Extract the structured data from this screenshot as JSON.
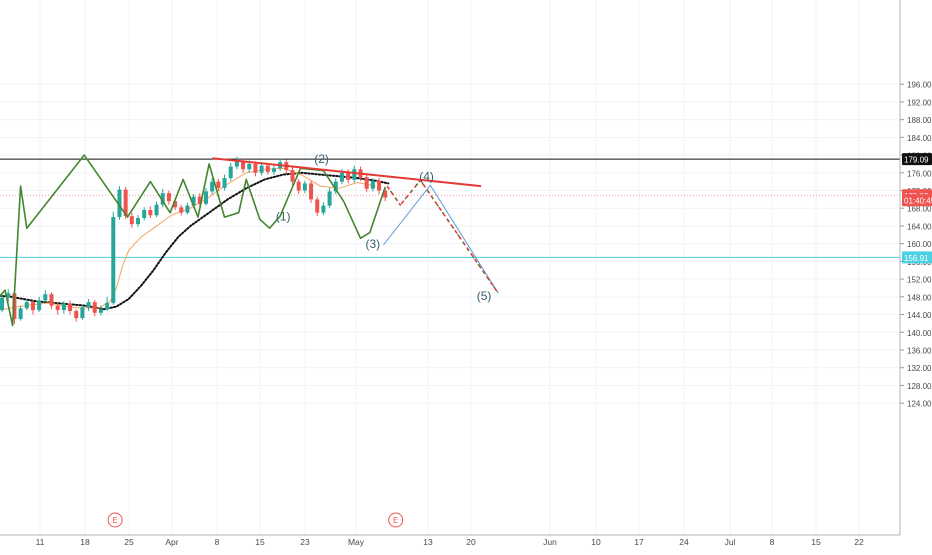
{
  "chart_data": {
    "type": "candlestick",
    "title": "",
    "xlabel": "",
    "ylabel": "",
    "ylim": [
      122,
      198
    ],
    "grid": true,
    "colors": {
      "up": "#26a69a",
      "down": "#ef5350",
      "wave": "#43862f",
      "trend": "#e53935",
      "sma_fast": "#f4a460",
      "sma_slow": "#111111",
      "projection": "#5b9bd5",
      "resistance": "#111111",
      "support": "#4dd0e1"
    },
    "x_ticks": [
      "11",
      "18",
      "25",
      "Apr",
      "8",
      "15",
      "23",
      "May",
      "13",
      "20",
      "Jun",
      "10",
      "17",
      "24",
      "Jul",
      "8",
      "15",
      "22"
    ],
    "y_ticks": [
      124,
      128,
      132,
      136,
      140,
      144,
      148,
      152,
      156,
      160,
      164,
      168,
      172,
      176,
      180,
      184,
      188,
      192,
      196
    ],
    "price_labels": [
      {
        "text": "179.09",
        "value": 179.09,
        "color": "#111111"
      },
      {
        "text": "170.92",
        "value": 170.92,
        "color": "#ef5350"
      },
      {
        "text": "01:40:45",
        "value": 169.8,
        "color": "#ef5350"
      },
      {
        "text": "156.91",
        "value": 156.91,
        "color": "#4dd0e1"
      }
    ],
    "horizontal_lines": [
      {
        "value": 179.09,
        "color": "#111111"
      },
      {
        "value": 170.92,
        "color": "#ef9a9a",
        "dotted": true
      },
      {
        "value": 156.91,
        "color": "#4dd0e1"
      }
    ],
    "wave_labels": [
      {
        "text": "(1)",
        "x": 18,
        "y": 165.2
      },
      {
        "text": "(2)",
        "x": 24.2,
        "y": 178.2
      },
      {
        "text": "(3)",
        "x": 32.5,
        "y": 159.0
      },
      {
        "text": "(4)",
        "x": 41.2,
        "y": 174.3
      },
      {
        "text": "(5)",
        "x": 50.5,
        "y": 147.3
      }
    ],
    "earnings_markers": [
      {
        "text": "E",
        "x": -9.2
      },
      {
        "text": "E",
        "x": 36.2
      }
    ],
    "wave_path": [
      [
        -38.2,
        152
      ],
      [
        -32.5,
        141
      ],
      [
        -27,
        149.5
      ],
      [
        -25.8,
        141.5
      ],
      [
        -24.5,
        173
      ],
      [
        -23.5,
        163.5
      ],
      [
        -14.2,
        180
      ],
      [
        -7.2,
        166
      ],
      [
        -3.5,
        174
      ],
      [
        -0.3,
        167
      ],
      [
        1.8,
        174.5
      ],
      [
        4.2,
        166
      ],
      [
        6,
        178
      ],
      [
        8.5,
        166
      ],
      [
        10.8,
        167
      ],
      [
        12,
        174.5
      ],
      [
        14.2,
        165.5
      ],
      [
        15.8,
        163.5
      ],
      [
        17.5,
        166.2
      ],
      [
        20.8,
        177
      ],
      [
        24.5,
        176.5
      ],
      [
        27.8,
        169.5
      ],
      [
        30.5,
        161.2
      ],
      [
        32,
        162.5
      ],
      [
        34.5,
        172.8
      ]
    ],
    "trend_line": [
      [
        6.5,
        179.3
      ],
      [
        50,
        173
      ]
    ],
    "projection_lines": [
      [
        [
          34.2,
          159.7
        ],
        [
          41.8,
          173.2
        ],
        [
          52.8,
          148.8
        ]
      ]
    ],
    "projection_dashed": [
      [
        [
          34.8,
          173
        ],
        [
          37,
          168.6
        ]
      ],
      [
        [
          37.1,
          169
        ],
        [
          40.2,
          174.3
        ],
        [
          52.8,
          148.8
        ]
      ]
    ],
    "candles": [
      {
        "x": -37.5,
        "o": 149.5,
        "c": 148.0,
        "h": 150.2,
        "l": 147.2
      },
      {
        "x": -36.5,
        "o": 148.0,
        "c": 149.2,
        "h": 150.0,
        "l": 147.0
      },
      {
        "x": -35.5,
        "o": 149.2,
        "c": 147.6,
        "h": 149.6,
        "l": 146.5
      },
      {
        "x": -34.5,
        "o": 147.6,
        "c": 143.0,
        "h": 148.0,
        "l": 142.3
      },
      {
        "x": -33.5,
        "o": 143.0,
        "c": 141.8,
        "h": 143.5,
        "l": 141.0
      },
      {
        "x": -32.5,
        "o": 141.8,
        "c": 144.5,
        "h": 145.2,
        "l": 141.2
      },
      {
        "x": -31.5,
        "o": 144.5,
        "c": 145.8,
        "h": 146.5,
        "l": 143.8
      },
      {
        "x": -30.5,
        "o": 145.8,
        "c": 143.2,
        "h": 146.2,
        "l": 142.6
      },
      {
        "x": -29.5,
        "o": 143.2,
        "c": 142.0,
        "h": 143.8,
        "l": 141.4
      },
      {
        "x": -28.5,
        "o": 142.0,
        "c": 145.0,
        "h": 145.6,
        "l": 141.6
      },
      {
        "x": -27.5,
        "o": 145.0,
        "c": 147.8,
        "h": 148.5,
        "l": 144.5
      },
      {
        "x": -26.5,
        "o": 147.8,
        "c": 148.8,
        "h": 149.7,
        "l": 146.8
      },
      {
        "x": -25.5,
        "o": 148.8,
        "c": 143.0,
        "h": 149.2,
        "l": 141.8
      },
      {
        "x": -24.5,
        "o": 143.0,
        "c": 145.4,
        "h": 146.0,
        "l": 142.6
      },
      {
        "x": -23.5,
        "o": 145.4,
        "c": 146.8,
        "h": 147.5,
        "l": 145.0
      },
      {
        "x": -22.5,
        "o": 146.8,
        "c": 145.0,
        "h": 147.2,
        "l": 144.0
      },
      {
        "x": -21.5,
        "o": 145.0,
        "c": 147.2,
        "h": 148.0,
        "l": 144.6
      },
      {
        "x": -20.5,
        "o": 147.2,
        "c": 148.6,
        "h": 149.5,
        "l": 146.8
      },
      {
        "x": -19.5,
        "o": 148.6,
        "c": 146.0,
        "h": 149.0,
        "l": 145.2
      },
      {
        "x": -18.5,
        "o": 146.0,
        "c": 145.0,
        "h": 146.6,
        "l": 144.0
      },
      {
        "x": -17.5,
        "o": 145.0,
        "c": 146.5,
        "h": 147.0,
        "l": 144.2
      },
      {
        "x": -16.5,
        "o": 146.5,
        "c": 144.8,
        "h": 147.2,
        "l": 144.0
      },
      {
        "x": -15.5,
        "o": 144.8,
        "c": 143.2,
        "h": 145.2,
        "l": 142.4
      },
      {
        "x": -14.5,
        "o": 143.2,
        "c": 145.6,
        "h": 146.2,
        "l": 142.8
      },
      {
        "x": -13.5,
        "o": 145.6,
        "c": 146.8,
        "h": 147.5,
        "l": 144.8
      },
      {
        "x": -12.5,
        "o": 146.8,
        "c": 144.4,
        "h": 147.3,
        "l": 143.6
      },
      {
        "x": -11.5,
        "o": 144.4,
        "c": 145.2,
        "h": 146.0,
        "l": 143.8
      },
      {
        "x": -10.5,
        "o": 145.2,
        "c": 146.6,
        "h": 148.0,
        "l": 144.8
      },
      {
        "x": -9.5,
        "o": 146.6,
        "c": 166.0,
        "h": 167.2,
        "l": 146.2
      },
      {
        "x": -8.5,
        "o": 166.0,
        "c": 172.2,
        "h": 173.0,
        "l": 165.4
      },
      {
        "x": -7.5,
        "o": 172.2,
        "c": 166.2,
        "h": 172.8,
        "l": 165.6
      },
      {
        "x": -6.5,
        "o": 166.2,
        "c": 164.4,
        "h": 167.0,
        "l": 163.6
      },
      {
        "x": -5.5,
        "o": 164.4,
        "c": 165.8,
        "h": 166.5,
        "l": 163.8
      },
      {
        "x": -4.5,
        "o": 165.8,
        "c": 167.6,
        "h": 168.2,
        "l": 165.2
      },
      {
        "x": -3.5,
        "o": 167.6,
        "c": 166.4,
        "h": 168.4,
        "l": 165.8
      },
      {
        "x": -2.5,
        "o": 166.4,
        "c": 168.8,
        "h": 169.5,
        "l": 166.0
      },
      {
        "x": -1.5,
        "o": 168.8,
        "c": 171.4,
        "h": 172.4,
        "l": 168.2
      },
      {
        "x": -0.5,
        "o": 171.4,
        "c": 169.6,
        "h": 172.0,
        "l": 168.8
      },
      {
        "x": 0.5,
        "o": 169.6,
        "c": 168.2,
        "h": 170.2,
        "l": 167.6
      },
      {
        "x": 1.5,
        "o": 168.2,
        "c": 167.0,
        "h": 168.8,
        "l": 166.4
      },
      {
        "x": 2.5,
        "o": 167.0,
        "c": 168.6,
        "h": 169.2,
        "l": 166.6
      },
      {
        "x": 3.5,
        "o": 168.6,
        "c": 170.6,
        "h": 171.2,
        "l": 168.2
      },
      {
        "x": 4.5,
        "o": 170.6,
        "c": 169.0,
        "h": 171.4,
        "l": 168.4
      },
      {
        "x": 5.5,
        "o": 169.0,
        "c": 171.8,
        "h": 172.6,
        "l": 168.6
      },
      {
        "x": 6.5,
        "o": 171.8,
        "c": 174.0,
        "h": 174.8,
        "l": 171.2
      },
      {
        "x": 7.5,
        "o": 174.0,
        "c": 172.6,
        "h": 174.6,
        "l": 171.8
      },
      {
        "x": 8.5,
        "o": 172.6,
        "c": 174.8,
        "h": 175.6,
        "l": 172.0
      },
      {
        "x": 9.5,
        "o": 174.8,
        "c": 177.4,
        "h": 178.2,
        "l": 174.2
      },
      {
        "x": 10.5,
        "o": 177.4,
        "c": 178.6,
        "h": 179.6,
        "l": 176.8
      },
      {
        "x": 11.5,
        "o": 178.6,
        "c": 176.8,
        "h": 179.2,
        "l": 176.0
      },
      {
        "x": 12.5,
        "o": 176.8,
        "c": 178.0,
        "h": 178.8,
        "l": 176.0
      },
      {
        "x": 13.5,
        "o": 178.0,
        "c": 176.0,
        "h": 178.6,
        "l": 175.2
      },
      {
        "x": 14.5,
        "o": 176.0,
        "c": 177.6,
        "h": 178.4,
        "l": 175.4
      },
      {
        "x": 15.5,
        "o": 177.6,
        "c": 176.2,
        "h": 178.2,
        "l": 175.6
      },
      {
        "x": 16.5,
        "o": 176.2,
        "c": 177.0,
        "h": 177.8,
        "l": 175.6
      },
      {
        "x": 17.5,
        "o": 177.0,
        "c": 178.4,
        "h": 179.2,
        "l": 176.4
      },
      {
        "x": 18.5,
        "o": 178.4,
        "c": 176.6,
        "h": 179.0,
        "l": 175.8
      },
      {
        "x": 19.5,
        "o": 176.6,
        "c": 174.0,
        "h": 177.2,
        "l": 173.2
      },
      {
        "x": 20.5,
        "o": 174.0,
        "c": 172.0,
        "h": 174.6,
        "l": 171.2
      },
      {
        "x": 21.5,
        "o": 172.0,
        "c": 173.6,
        "h": 174.2,
        "l": 171.4
      },
      {
        "x": 22.5,
        "o": 173.6,
        "c": 170.0,
        "h": 174.2,
        "l": 169.2
      },
      {
        "x": 23.5,
        "o": 170.0,
        "c": 167.0,
        "h": 170.6,
        "l": 166.2
      },
      {
        "x": 24.5,
        "o": 167.0,
        "c": 168.6,
        "h": 169.4,
        "l": 166.4
      },
      {
        "x": 25.5,
        "o": 168.6,
        "c": 171.8,
        "h": 172.6,
        "l": 168.0
      },
      {
        "x": 26.5,
        "o": 171.8,
        "c": 174.0,
        "h": 174.8,
        "l": 171.2
      },
      {
        "x": 27.5,
        "o": 174.0,
        "c": 176.0,
        "h": 176.8,
        "l": 173.4
      },
      {
        "x": 28.5,
        "o": 176.0,
        "c": 174.4,
        "h": 176.8,
        "l": 173.6
      },
      {
        "x": 29.5,
        "o": 174.4,
        "c": 176.8,
        "h": 177.6,
        "l": 173.8
      },
      {
        "x": 30.5,
        "o": 176.8,
        "c": 175.0,
        "h": 177.4,
        "l": 174.2
      },
      {
        "x": 31.5,
        "o": 175.0,
        "c": 172.4,
        "h": 175.6,
        "l": 171.6
      },
      {
        "x": 32.5,
        "o": 172.4,
        "c": 174.2,
        "h": 174.8,
        "l": 171.8
      },
      {
        "x": 33.5,
        "o": 174.2,
        "c": 172.0,
        "h": 174.8,
        "l": 171.2
      },
      {
        "x": 34.5,
        "o": 172.0,
        "c": 170.4,
        "h": 172.6,
        "l": 169.6
      }
    ],
    "sma_fast": [
      [
        -38,
        149
      ],
      [
        -33,
        145.5
      ],
      [
        -28,
        145
      ],
      [
        -24,
        146
      ],
      [
        -20,
        146.6
      ],
      [
        -16,
        145.6
      ],
      [
        -12,
        145.4
      ],
      [
        -10,
        147
      ],
      [
        -9,
        150
      ],
      [
        -8,
        155
      ],
      [
        -7,
        158.5
      ],
      [
        -5,
        161.5
      ],
      [
        -3,
        163.5
      ],
      [
        0,
        166.5
      ],
      [
        3,
        168
      ],
      [
        6,
        170.5
      ],
      [
        9,
        173.5
      ],
      [
        12,
        176
      ],
      [
        15,
        176.8
      ],
      [
        18,
        177
      ],
      [
        21,
        175.5
      ],
      [
        24,
        173
      ],
      [
        27,
        172.5
      ],
      [
        30,
        173.8
      ],
      [
        33,
        173
      ]
    ],
    "sma_slow": [
      [
        -38,
        150
      ],
      [
        -34,
        149.5
      ],
      [
        -30,
        148.5
      ],
      [
        -26,
        148
      ],
      [
        -22,
        147
      ],
      [
        -18,
        146.5
      ],
      [
        -14,
        146
      ],
      [
        -11,
        145.2
      ],
      [
        -9,
        145.8
      ],
      [
        -7,
        147.5
      ],
      [
        -5,
        150.5
      ],
      [
        -3,
        154
      ],
      [
        -1,
        158
      ],
      [
        1,
        161.5
      ],
      [
        3,
        164
      ],
      [
        6,
        167
      ],
      [
        9,
        170
      ],
      [
        12,
        172.5
      ],
      [
        15,
        174.5
      ],
      [
        18,
        175.6
      ],
      [
        21,
        176
      ],
      [
        24,
        175.6
      ],
      [
        27,
        175.2
      ],
      [
        30,
        174.8
      ],
      [
        33,
        174.2
      ],
      [
        35,
        173.6
      ]
    ]
  }
}
